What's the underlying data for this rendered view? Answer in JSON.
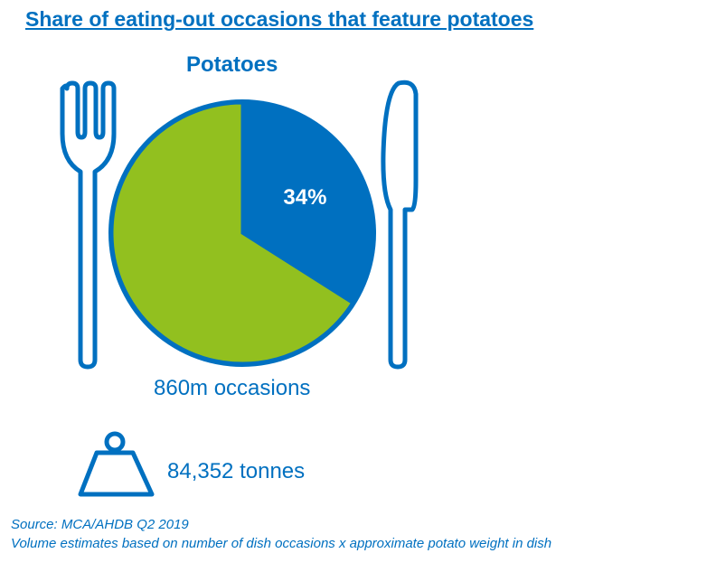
{
  "header": {
    "title": "Share of eating-out occasions that feature potatoes"
  },
  "colors": {
    "primary_blue": "#0070c0",
    "green": "#92c01f",
    "white": "#ffffff"
  },
  "icons": [
    "fork-icon",
    "knife-icon",
    "weight-icon"
  ],
  "chart_data": {
    "type": "pie",
    "title": "Potatoes",
    "slices": [
      {
        "value": 34,
        "label": "34%",
        "color": "#0070c0"
      },
      {
        "value": 66,
        "label": "",
        "color": "#92c01f"
      }
    ],
    "start": "12 o'clock",
    "direction": "clockwise"
  },
  "stats": {
    "occasions": "860m occasions",
    "tonnes": "84,352 tonnes"
  },
  "footnotes": {
    "source": "Source: MCA/AHDB Q2 2019",
    "note": "Volume estimates based on number of dish occasions x approximate potato weight in dish"
  }
}
